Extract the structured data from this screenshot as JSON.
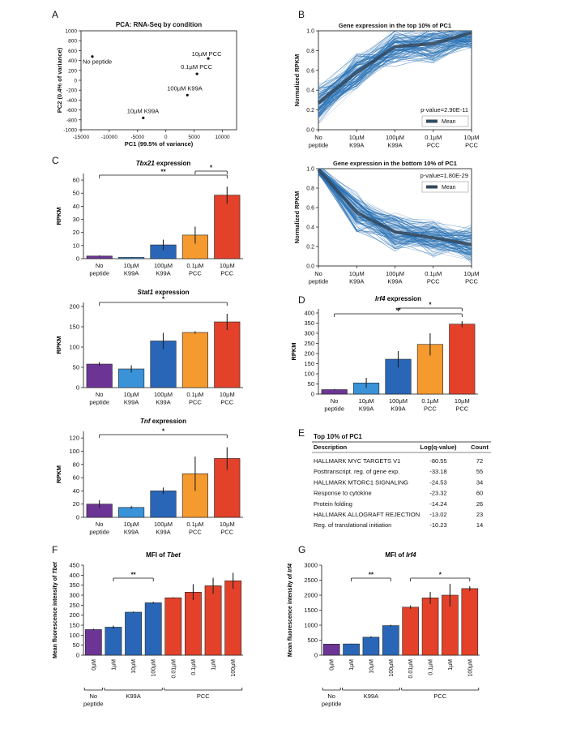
{
  "panels": {
    "A": "A",
    "B": "B",
    "C": "C",
    "D": "D",
    "E": "E",
    "F": "F",
    "G": "G"
  },
  "chart_data": [
    {
      "id": "pca",
      "type": "scatter",
      "title": "PCA: RNA-Seq by condition",
      "xlabel": "PC1 (99.5% of variance)",
      "ylabel": "PC2 (0.4% of variance)",
      "xlim": [
        -15000,
        12500
      ],
      "ylim": [
        -1000,
        1000
      ],
      "xticks": [
        -15000,
        -10000,
        -5000,
        0,
        5000,
        10000
      ],
      "yticks": [
        -1000,
        -800,
        -600,
        -400,
        -200,
        0,
        200,
        400,
        600,
        800,
        1000
      ],
      "points": [
        {
          "label": "No peptide",
          "x": -13000,
          "y": 480
        },
        {
          "label": "10µM PCC",
          "x": 7500,
          "y": 440
        },
        {
          "label": "0.1µM PCC",
          "x": 5500,
          "y": 130
        },
        {
          "label": "100µM K99A",
          "x": 3800,
          "y": -300
        },
        {
          "label": "10µM K99A",
          "x": -4000,
          "y": -760
        }
      ]
    },
    {
      "id": "top10",
      "type": "line",
      "title": "Gene expression in the top 10% of PC1",
      "ylabel": "Normalized RPKM",
      "categories": [
        "No\npeptide",
        "10µM\nK99A",
        "100µM\nK99A",
        "0.1µM\nPCC",
        "10µM\nPCC"
      ],
      "ylim": [
        0,
        1
      ],
      "yticks": [
        "0.0",
        "0.2",
        "0.4",
        "0.6",
        "0.8",
        "1.0"
      ],
      "mean": [
        0.27,
        0.58,
        0.84,
        0.87,
        0.98
      ],
      "annotation": "p-value=2.90E-11",
      "legend": "Mean",
      "seed": 7
    },
    {
      "id": "bottom10",
      "type": "line",
      "title": "Gene expression in the bottom 10% of PC1",
      "ylabel": "Normalized RPKM",
      "categories": [
        "No\npeptide",
        "10µM\nK99A",
        "100µM\nK99A",
        "0.1µM\nPCC",
        "10µM\nPCC"
      ],
      "ylim": [
        0,
        1
      ],
      "yticks": [
        "0.0",
        "0.2",
        "0.4",
        "0.6",
        "0.8",
        "1.0"
      ],
      "mean": [
        0.99,
        0.55,
        0.35,
        0.29,
        0.22
      ],
      "annotation": "p-value=1.80E-29",
      "legend": "Mean",
      "seed": 13
    },
    {
      "id": "tbx21",
      "type": "bar",
      "title_italic": "Tbx21",
      "title_rest": " expression",
      "ylabel": "RPKM",
      "categories": [
        "No\npeptide",
        "10µM\nK99A",
        "100µM\nK99A",
        "0.1µM\nPCC",
        "10µM\nPCC"
      ],
      "values": [
        2,
        1,
        10.5,
        18,
        48.5
      ],
      "errors": [
        0.5,
        0.3,
        4,
        6.5,
        6.5
      ],
      "ylim": [
        0,
        65
      ],
      "yticks": [
        0,
        10,
        20,
        30,
        40,
        50,
        60
      ],
      "sig": [
        {
          "from": 0,
          "to": 4,
          "label": "**",
          "level": 2
        },
        {
          "from": 3,
          "to": 4,
          "label": "*",
          "level": 1
        }
      ]
    },
    {
      "id": "stat1",
      "type": "bar",
      "title_italic": "Stat1",
      "title_rest": " expression",
      "ylabel": "RPKM",
      "categories": [
        "No\npeptide",
        "10µM\nK99A",
        "100µM\nK99A",
        "0.1µM\nPCC",
        "10µM\nPCC"
      ],
      "values": [
        58,
        46,
        115,
        136,
        162
      ],
      "errors": [
        5,
        9,
        20,
        3,
        20
      ],
      "ylim": [
        0,
        210
      ],
      "yticks": [
        0,
        50,
        100,
        150,
        200
      ],
      "sig": [
        {
          "from": 0,
          "to": 4,
          "label": "*",
          "level": 1
        }
      ]
    },
    {
      "id": "tnf",
      "type": "bar",
      "title_italic": "Tnf",
      "title_rest": " expression",
      "ylabel": "RPKM",
      "categories": [
        "No\npeptide",
        "10µM\nK99A",
        "100µM\nK99A",
        "0.1µM\nPCC",
        "10µM\nPCC"
      ],
      "values": [
        20,
        15,
        40,
        66,
        89
      ],
      "errors": [
        6,
        2,
        5,
        26,
        17
      ],
      "ylim": [
        0,
        130
      ],
      "yticks": [
        0,
        20,
        40,
        60,
        80,
        100,
        120
      ],
      "sig": [
        {
          "from": 0,
          "to": 4,
          "label": "*",
          "level": 1
        }
      ]
    },
    {
      "id": "irf4",
      "type": "bar",
      "title_italic": "Irf4",
      "title_rest": " expression",
      "ylabel": "RPKM",
      "categories": [
        "No\npeptide",
        "10µM\nK99A",
        "100µM\nK99A",
        "0.1µM\nPCC",
        "10µM\nPCC"
      ],
      "values": [
        22,
        55,
        172,
        245,
        345
      ],
      "errors": [
        3,
        25,
        40,
        55,
        15
      ],
      "ylim": [
        0,
        420
      ],
      "yticks": [
        0,
        50,
        100,
        150,
        200,
        250,
        300,
        350,
        400
      ],
      "sig": [
        {
          "from": 0,
          "to": 4,
          "label": "**",
          "level": 1
        },
        {
          "from": 2,
          "to": 4,
          "label": "*",
          "level": 2
        }
      ]
    },
    {
      "id": "mfi_tbet",
      "type": "bar",
      "title_plain": "MFI of ",
      "title_italic": "Tbet",
      "ylabel_plain": "Mean fluorescence intensity of ",
      "ylabel_italic": "Tbet",
      "categories": [
        "0µM",
        "1µM",
        "10µM",
        "100µM",
        "0.01µM",
        "0.1µM",
        "1µM",
        "100µM"
      ],
      "values": [
        128,
        140,
        215,
        262,
        287,
        315,
        347,
        372
      ],
      "errors": [
        4,
        8,
        3,
        5,
        3,
        40,
        40,
        40
      ],
      "ylim": [
        0,
        450
      ],
      "yticks": [
        0,
        50,
        100,
        150,
        200,
        250,
        300,
        350,
        400,
        450
      ],
      "sig": [
        {
          "from": 1,
          "to": 3,
          "label": "**",
          "level": 1
        }
      ],
      "groups": [
        {
          "label": "No\npeptide",
          "from": 0,
          "to": 0
        },
        {
          "label": "K99A",
          "from": 1,
          "to": 3
        },
        {
          "label": "PCC",
          "from": 4,
          "to": 7
        }
      ]
    },
    {
      "id": "mfi_irf4",
      "type": "bar",
      "title_plain": "MFI of ",
      "title_italic": "Irf4",
      "ylabel_plain": "Mean fluorescence intensity of ",
      "ylabel_italic": "Irf4",
      "categories": [
        "0µM",
        "1µM",
        "10µM",
        "100µM",
        "0.01µM",
        "0.1µM",
        "1µM",
        "100µM"
      ],
      "values": [
        370,
        375,
        600,
        985,
        1600,
        1910,
        2000,
        2220
      ],
      "errors": [
        10,
        10,
        30,
        30,
        60,
        200,
        380,
        80
      ],
      "ylim": [
        0,
        3000
      ],
      "yticks": [
        0,
        500,
        1000,
        1500,
        2000,
        2500,
        3000
      ],
      "sig": [
        {
          "from": 1,
          "to": 3,
          "label": "**",
          "level": 1
        },
        {
          "from": 4,
          "to": 7,
          "label": "*",
          "level": 1
        }
      ],
      "groups": [
        {
          "label": "No\npeptide",
          "from": 0,
          "to": 0
        },
        {
          "label": "K99A",
          "from": 1,
          "to": 3
        },
        {
          "label": "PCC",
          "from": 4,
          "to": 7
        }
      ]
    }
  ],
  "table": {
    "title": "Top 10% of PC1",
    "headers": [
      "Description",
      "Log(q-value)",
      "Count"
    ],
    "rows": [
      [
        "HALLMARK MYC TARGETS V1",
        "-80.55",
        "72"
      ],
      [
        "Posttranscript. reg. of gene exp.",
        "-33.18",
        "55"
      ],
      [
        "HALLMARK MTORC1 SIGNALING",
        "-24.53",
        "34"
      ],
      [
        "Response to cytokine",
        "-23.32",
        "60"
      ],
      [
        "Protein folding",
        "-14.24",
        "26"
      ],
      [
        "HALLMARK ALLOGRAFT REJECTION",
        "-13.02",
        "23"
      ],
      [
        "Reg. of translational initiation",
        "-10.23",
        "14"
      ]
    ]
  },
  "colors": {
    "no_peptide": "#6c3595",
    "k99a_low": "#3a93d8",
    "k99a": "#2966b8",
    "pcc_low": "#f59a2e",
    "pcc": "#e3412a",
    "trace": "#2a72b5",
    "mean": "#34495e"
  }
}
